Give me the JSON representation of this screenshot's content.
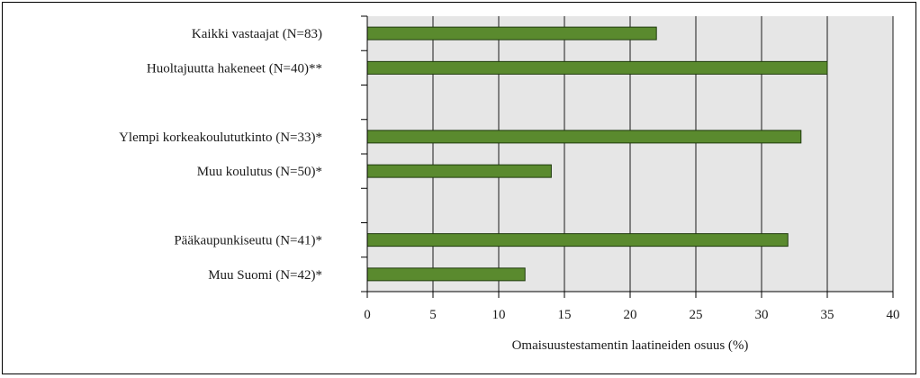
{
  "chart_data": {
    "type": "bar",
    "orientation": "horizontal",
    "categories": [
      "Kaikki vastaajat (N=83)",
      "Huoltajuutta hakeneet (N=40)**",
      "",
      "Ylempi korkeakoulututkinto (N=33)*",
      "Muu koulutus (N=50)*",
      "",
      "Pääkaupunkiseutu (N=41)*",
      "Muu Suomi (N=42)*"
    ],
    "values": [
      22,
      35,
      null,
      33,
      14,
      null,
      32,
      12
    ],
    "xlabel": "Omaisuustestamentin laatineiden osuus (%)",
    "ylabel": "",
    "title": "",
    "xlim": [
      0,
      40
    ],
    "xticks": [
      0,
      5,
      10,
      15,
      20,
      25,
      30,
      35,
      40
    ],
    "grid": "vertical",
    "colors": {
      "bar_fill": "#5a8a2e",
      "bar_stroke": "#1f3a0c",
      "plot_background": "#e6e6e6",
      "grid": "#1a1a1a",
      "frame": "#000000"
    }
  }
}
